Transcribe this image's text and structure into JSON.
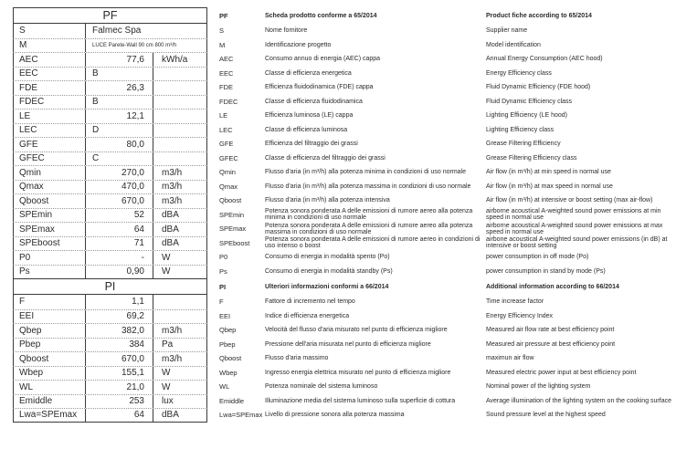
{
  "document": {
    "colors": {
      "text": "#2b2b2b",
      "table_border": "#3a3a3a",
      "row_separator": "#9a9a9a",
      "background": "#ffffff"
    },
    "sections": {
      "product_fiche_code": "PF",
      "product_fiche_it": "Scheda prodotto conforme a 65/2014",
      "product_fiche_en": "Product fiche according to 65/2014",
      "additional_info_code": "PI",
      "additional_info_it": "Ulteriori informazioni conformi a 66/2014",
      "additional_info_en": "Additional information according to 66/2014"
    },
    "rows": [
      {
        "c": "PF",
        "cls": "hdr",
        "it": "Scheda prodotto conforme a 65/2014",
        "en": "Product fiche according to 65/2014"
      },
      {
        "c": "S",
        "v": "Falmec Spa",
        "cls": "span",
        "it": "Nome fornitore",
        "en": "Supplier name"
      },
      {
        "c": "M",
        "v": "LUCE Parete-Wall 90 cm 800 m³/h",
        "cls": "span small",
        "it": "Identificazione progetto",
        "en": "Model identification"
      },
      {
        "c": "AEC",
        "v": "77,6",
        "u": "kWh/a",
        "cls": "num",
        "it": "Consumo annuo di energia (AEC) cappa",
        "en": "Annual Energy Consumption (AEC hood)"
      },
      {
        "c": "EEC",
        "v": "B",
        "u": "",
        "cls": "alpha",
        "it": "Classe di efficienza energetica",
        "en": "Energy Efficiency class"
      },
      {
        "c": "FDE",
        "v": "26,3",
        "u": "",
        "cls": "num",
        "it": "Efficienza fluidodinamica (FDE) cappa",
        "en": "Fluid Dynamic Efficiency (FDE hood)"
      },
      {
        "c": "FDEC",
        "v": "B",
        "u": "",
        "cls": "alpha",
        "it": "Classe di efficienza fluidodinamica",
        "en": "Fluid Dynamic Efficiency class"
      },
      {
        "c": "LE",
        "v": "12,1",
        "u": "",
        "cls": "num",
        "it": "Efficienza luminosa (LE) cappa",
        "en": "Lighting Efficiency (LE hood)"
      },
      {
        "c": "LEC",
        "v": "D",
        "u": "",
        "cls": "alpha",
        "it": "Classe di efficienza luminosa",
        "en": "Lighting Efficiency class"
      },
      {
        "c": "GFE",
        "v": "80,0",
        "u": "",
        "cls": "num",
        "it": "Efficienza del filtraggio dei grassi",
        "en": "Grease Filtering Efficiency"
      },
      {
        "c": "GFEC",
        "v": "C",
        "u": "",
        "cls": "alpha",
        "it": "Classe di efficienza del filtraggio dei grassi",
        "en": "Grease Filtering Efficiency class"
      },
      {
        "c": "Qmin",
        "v": "270,0",
        "u": "m3/h",
        "cls": "num",
        "it": "Flusso d'aria (in m³/h) alla potenza minima in condizioni di uso normale",
        "en": "Air flow (in m³/h) at min speed in normal use"
      },
      {
        "c": "Qmax",
        "v": "470,0",
        "u": "m3/h",
        "cls": "num",
        "it": "Flusso d'aria (in m³/h) alla potenza massima in condizioni di uso normale",
        "en": "Air flow (in m³/h) at max speed in normal use"
      },
      {
        "c": "Qboost",
        "v": "670,0",
        "u": "m3/h",
        "cls": "num",
        "it": "Flusso d'aria (in m³/h) alla potenza intensiva",
        "en": "Air flow (in m³/h) at intensive or boost setting (max air-flow)"
      },
      {
        "c": "SPEmin",
        "v": "52",
        "u": "dBA",
        "cls": "num",
        "it": "Potenza sonora ponderata A delle emissioni di rumore aereo alla potenza minima in condizioni di uso normale",
        "en": "airborne acoustical A-weighted sound power emissions at min speed in normal use"
      },
      {
        "c": "SPEmax",
        "v": "64",
        "u": "dBA",
        "cls": "num",
        "it": "Potenza sonora ponderata A delle emissioni di rumore aereo alla potenza massima in condizioni di uso normale",
        "en": "airborne acoustical A-weighted sound power emissions at max speed in normal use"
      },
      {
        "c": "SPEboost",
        "v": "71",
        "u": "dBA",
        "cls": "num",
        "it": "Potenza sonora ponderata A delle emissioni di rumore aereo in condizioni di uso intenso o boost",
        "en": "airbone acoustical A-weighted sound power emissions (in dB) at intensive or boost setting"
      },
      {
        "c": "P0",
        "v": "-",
        "u": "W",
        "cls": "num",
        "it": "Consumo di energia in modalità spento (Po)",
        "en": "power consumption in off mode (Po)"
      },
      {
        "c": "Ps",
        "v": "0,90",
        "u": "W",
        "cls": "num",
        "it": "Consumo di energia in modalità standby (Ps)",
        "en": "power consumption in stand by mode (Ps)"
      },
      {
        "c": "PI",
        "cls": "hdr",
        "it": "Ulteriori informazioni conformi a 66/2014",
        "en": "Additional information according to 66/2014"
      },
      {
        "c": "F",
        "v": "1,1",
        "u": "",
        "cls": "num",
        "it": "Fattore di incremento nel tempo",
        "en": "Time increase factor"
      },
      {
        "c": "EEI",
        "v": "69,2",
        "u": "",
        "cls": "num",
        "it": "Indice di efficienza energetica",
        "en": "Energy Efficiency Index"
      },
      {
        "c": "Qbep",
        "v": "382,0",
        "u": "m3/h",
        "cls": "num",
        "it": "Velocità del flusso d'aria misurato nel punto di efficienza migliore",
        "en": "Measured air flow rate at best efficiency point"
      },
      {
        "c": "Pbep",
        "v": "384",
        "u": "Pa",
        "cls": "num",
        "it": "Pressione dell'aria misurata nel punto di efficienza migliore",
        "en": "Measured air pressure at best efficiency point"
      },
      {
        "c": "Qboost",
        "v": "670,0",
        "u": "m3/h",
        "cls": "num",
        "it": "Flusso d'aria massimo",
        "en": "maximun air flow"
      },
      {
        "c": "Wbep",
        "v": "155,1",
        "u": "W",
        "cls": "num",
        "it": "Ingresso energia elettrica misurato nel punto di efficienza migliore",
        "en": "Measured electric power input at best efficiency point"
      },
      {
        "c": "WL",
        "v": "21,0",
        "u": "W",
        "cls": "num",
        "it": "Potenza nominale del sistema luminoso",
        "en": "Nominal power of the lighting system"
      },
      {
        "c": "Emiddle",
        "v": "253",
        "u": "lux",
        "cls": "num",
        "it": "Illuminazione media del sistema luminoso sulla superficie di cottura",
        "en": "Average illumination of the lighting system on the cooking surface"
      },
      {
        "c": "Lwa=SPEmax",
        "v": "64",
        "u": "dBA",
        "cls": "num",
        "it": "Livello di pressione sonora alla potenza massima",
        "en": "Sound pressure level at the highest speed"
      }
    ]
  }
}
